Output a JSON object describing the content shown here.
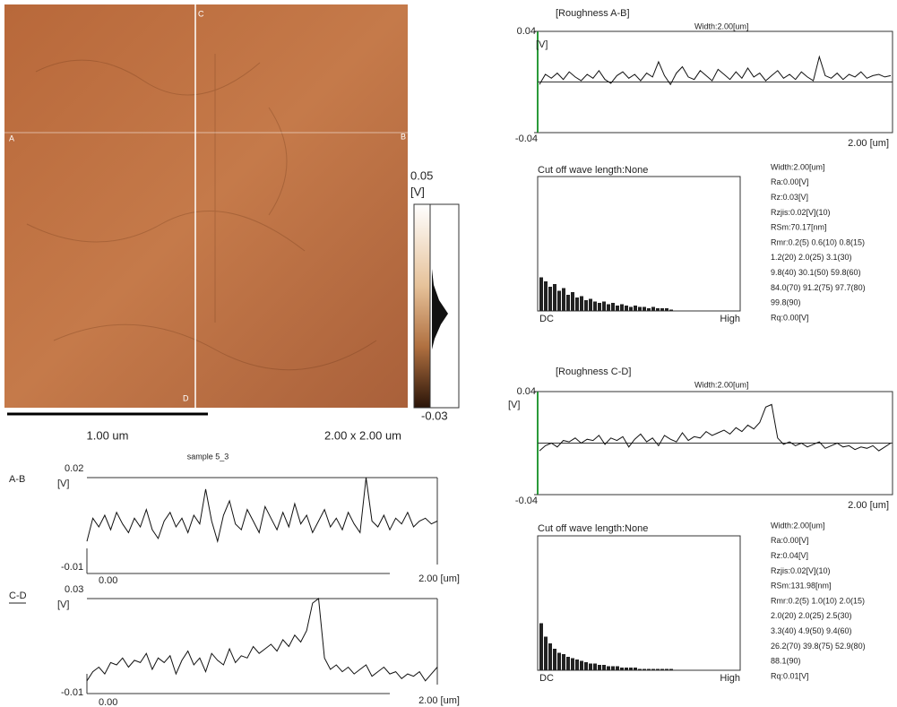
{
  "image": {
    "labels": [
      "A",
      "B",
      "C",
      "D"
    ],
    "scale_bar": "1.00 um",
    "size": "2.00 x 2.00 um",
    "colorbar": {
      "max": 0.05,
      "unit": "[V]",
      "min": -0.03
    }
  },
  "profiles": {
    "title": "sample 5_3",
    "charts": [
      {
        "name": "A-B",
        "ylim": [
          -0.01,
          0.02
        ],
        "unit": "[V]",
        "x_start": "0.00",
        "x_end": "2.00 [um]",
        "values": [
          -0.002,
          0.006,
          0.003,
          0.007,
          0.002,
          0.008,
          0.004,
          0.001,
          0.006,
          0.003,
          0.009,
          0.002,
          -0.001,
          0.005,
          0.008,
          0.003,
          0.006,
          0.001,
          0.007,
          0.004,
          0.016,
          0.005,
          -0.002,
          0.007,
          0.012,
          0.004,
          0.002,
          0.009,
          0.005,
          0.001,
          0.01,
          0.006,
          0.002,
          0.008,
          0.003,
          0.011,
          0.004,
          0.007,
          0.001,
          0.005,
          0.009,
          0.003,
          0.006,
          0.002,
          0.008,
          0.004,
          0.001,
          0.02,
          0.005,
          0.003,
          0.007,
          0.002,
          0.006,
          0.004,
          0.008,
          0.003,
          0.005,
          0.006,
          0.004,
          0.005
        ]
      },
      {
        "name": "C-D",
        "ylim": [
          -0.01,
          0.03
        ],
        "unit": "[V]",
        "x_start": "0.00",
        "x_end": "2.00 [um]",
        "values": [
          -0.006,
          -0.002,
          0.0,
          -0.003,
          0.002,
          0.001,
          0.004,
          0.0,
          0.003,
          0.002,
          0.006,
          -0.001,
          0.004,
          0.002,
          0.005,
          -0.003,
          0.003,
          0.007,
          0.001,
          0.004,
          -0.002,
          0.006,
          0.003,
          0.001,
          0.008,
          0.002,
          0.005,
          0.004,
          0.009,
          0.006,
          0.008,
          0.01,
          0.007,
          0.012,
          0.009,
          0.014,
          0.011,
          0.016,
          0.028,
          0.03,
          0.004,
          -0.001,
          0.001,
          -0.002,
          0.0,
          -0.003,
          -0.001,
          0.001,
          -0.004,
          -0.002,
          0.0,
          -0.003,
          -0.002,
          -0.005,
          -0.003,
          -0.004,
          -0.002,
          -0.006,
          -0.003,
          0.0
        ]
      }
    ]
  },
  "roughness": [
    {
      "title": "[Roughness A-B]",
      "width": "Width:2.00[um]",
      "ylim": [
        -0.04,
        0.04
      ],
      "unit": "[V]",
      "x_end": "2.00 [um]",
      "spectrum_title": "Cut off wave length:None",
      "dc": "DC",
      "high": "High",
      "spectrum": [
        0.25,
        0.22,
        0.18,
        0.2,
        0.15,
        0.17,
        0.12,
        0.14,
        0.1,
        0.11,
        0.08,
        0.09,
        0.07,
        0.06,
        0.07,
        0.05,
        0.06,
        0.04,
        0.05,
        0.04,
        0.03,
        0.04,
        0.03,
        0.03,
        0.02,
        0.03,
        0.02,
        0.02,
        0.02,
        0.01
      ],
      "stats": [
        "Width:2.00[um]",
        "Ra:0.00[V]",
        "Rz:0.03[V]",
        "Rzjis:0.02[V](10)",
        "RSm:70.17[nm]",
        "Rmr:0.2(5) 0.6(10) 0.8(15)",
        "1.2(20) 2.0(25) 3.1(30)",
        "9.8(40) 30.1(50) 59.8(60)",
        "84.0(70) 91.2(75) 97.7(80)",
        "99.8(90)",
        "Rq:0.00[V]"
      ]
    },
    {
      "title": "[Roughness C-D]",
      "width": "Width:2.00[um]",
      "ylim": [
        -0.04,
        0.04
      ],
      "unit": "[V]",
      "x_end": "2.00 [um]",
      "spectrum_title": "Cut off wave length:None",
      "dc": "DC",
      "high": "High",
      "spectrum": [
        0.35,
        0.25,
        0.2,
        0.16,
        0.13,
        0.12,
        0.1,
        0.09,
        0.08,
        0.07,
        0.06,
        0.05,
        0.05,
        0.04,
        0.04,
        0.03,
        0.03,
        0.03,
        0.02,
        0.02,
        0.02,
        0.02,
        0.01,
        0.01,
        0.01,
        0.01,
        0.01,
        0.01,
        0.01,
        0.01
      ],
      "stats": [
        "Width:2.00[um]",
        "Ra:0.00[V]",
        "Rz:0.04[V]",
        "Rzjis:0.02[V](10)",
        "RSm:131.98[nm]",
        "Rmr:0.2(5) 1.0(10) 2.0(15)",
        "2.0(20) 2.0(25) 2.5(30)",
        "3.3(40) 4.9(50) 9.4(60)",
        "26.2(70) 39.8(75) 52.9(80)",
        "88.1(90)",
        "Rq:0.01[V]"
      ]
    }
  ]
}
